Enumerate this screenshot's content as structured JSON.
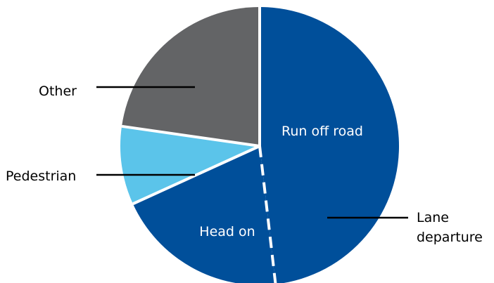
{
  "chart_data": {
    "type": "pie",
    "title": "",
    "categories": [
      "Run off road",
      "Head on",
      "Pedestrian",
      "Other"
    ],
    "values": [
      53,
      22,
      10,
      25
    ],
    "colors": [
      "#004f9a",
      "#004f9a",
      "#5bc4ea",
      "#636466"
    ],
    "start_angle_deg": 0,
    "direction": "clockwise",
    "internal_labels": [
      "Run off road",
      "Head on"
    ],
    "external_labels": [
      "Other",
      "Pedestrian"
    ],
    "group": {
      "label_lines": [
        "Lane",
        "departure"
      ],
      "members": [
        "Run off road",
        "Head on"
      ]
    },
    "divider": {
      "between": [
        "Run off road",
        "Head on"
      ],
      "style": "dashed",
      "color": "#ffffff"
    },
    "legend": "none"
  }
}
